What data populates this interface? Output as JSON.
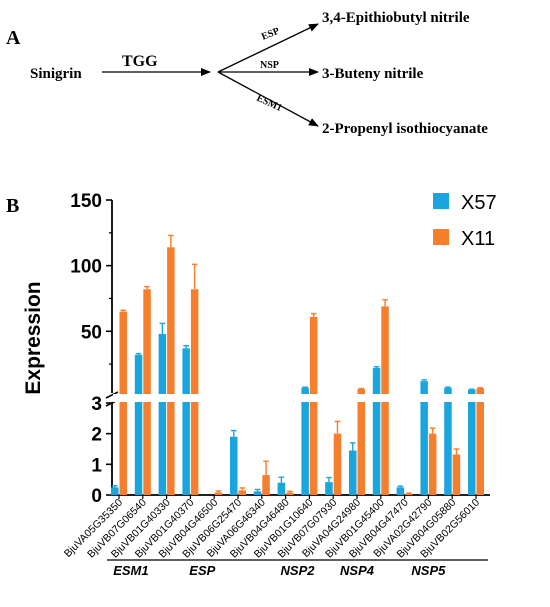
{
  "panel_a": {
    "label": "A",
    "substrate": "Sinigrin",
    "enzyme": "TGG",
    "branches": [
      {
        "enzyme": "ESP",
        "product": "3,4-Epithiobutyl nitrile"
      },
      {
        "enzyme": "NSP",
        "product": "3-Buteny nitrile"
      },
      {
        "enzyme": "ESM1",
        "product": "2-Propenyl isothiocyanate"
      }
    ]
  },
  "panel_b": {
    "label": "B"
  },
  "chart_data": {
    "type": "bar",
    "ylabel": "Expression",
    "y_axis_break": {
      "lower": [
        0,
        3
      ],
      "upper": [
        3,
        150
      ]
    },
    "yticks_lower": [
      0,
      1,
      2,
      3
    ],
    "yticks_upper": [
      50,
      100,
      150
    ],
    "categories": [
      "BjuVA05G35350",
      "BjuVB07G06540",
      "BjuVB01G40330",
      "BjuVB01G40370",
      "BjuVB04G46500",
      "BjuVB06G25470",
      "BjuVA06G46340",
      "BjuVB04G46480",
      "BjuVB01G10640",
      "BjuVB07G07930",
      "BjuVA04G24980",
      "BjuVB01G45400",
      "BjuVB04G47470",
      "BjuVA02G42790",
      "BjuVB04G05880",
      "BjuVB02G56010"
    ],
    "series": [
      {
        "name": "X57",
        "color": "#1aa5dd",
        "values": [
          0.25,
          32,
          48,
          37,
          0,
          1.9,
          0.12,
          0.4,
          7,
          0.42,
          1.45,
          22,
          0.25,
          12,
          7,
          5.5
        ],
        "errors": [
          0.05,
          1,
          8,
          2,
          0,
          0.2,
          0.06,
          0.18,
          0.5,
          0.15,
          0.25,
          1,
          0.04,
          1,
          0.5,
          0.4
        ]
      },
      {
        "name": "X11",
        "color": "#f57f2c",
        "values": [
          65,
          82,
          114,
          82,
          0.08,
          0.15,
          0.65,
          0.08,
          61,
          2.0,
          6,
          69,
          0.04,
          2.0,
          1.32,
          6.5
        ],
        "errors": [
          1,
          2,
          9,
          19,
          0.05,
          0.08,
          0.45,
          0.04,
          2.5,
          0.4,
          0.4,
          5,
          0.02,
          0.18,
          0.18,
          0.5
        ]
      }
    ],
    "groups": [
      {
        "name": "ESM1",
        "from": 0,
        "to": 1
      },
      {
        "name": "ESP",
        "from": 2,
        "to": 5
      },
      {
        "name": "NSP2",
        "from": 6,
        "to": 9
      },
      {
        "name": "NSP4",
        "from": 10,
        "to": 10
      },
      {
        "name": "NSP5",
        "from": 11,
        "to": 15
      }
    ],
    "legend_position": "top-right"
  }
}
